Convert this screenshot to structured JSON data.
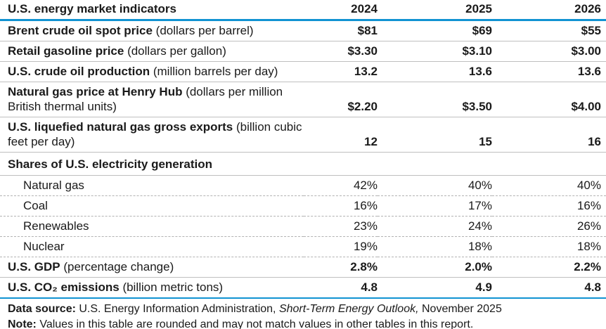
{
  "colors": {
    "accent_blue": "#1193d2",
    "separator_gray": "#bfbfbf",
    "text": "#1a1a1a"
  },
  "table": {
    "title": "U.S. energy market indicators",
    "years": [
      "2024",
      "2025",
      "2026"
    ],
    "rows": [
      {
        "bold": "Brent crude oil spot price",
        "rest": " (dollars per barrel)",
        "values": [
          "$81",
          "$69",
          "$55"
        ]
      },
      {
        "bold": "Retail gasoline price",
        "rest": " (dollars per gallon)",
        "values": [
          "$3.30",
          "$3.10",
          "$3.00"
        ]
      },
      {
        "bold": "U.S. crude oil production",
        "rest": " (million barrels per day)",
        "values": [
          "13.2",
          "13.6",
          "13.6"
        ]
      },
      {
        "bold": "Natural gas price at Henry Hub",
        "rest": " (dollars per million British thermal units)",
        "values": [
          "$2.20",
          "$3.50",
          "$4.00"
        ]
      },
      {
        "bold": "U.S. liquefied natural gas gross exports",
        "rest": " (billion cubic feet per day)",
        "values": [
          "12",
          "15",
          "16"
        ]
      },
      {
        "bold": "Shares of U.S. electricity generation"
      },
      {
        "label": "Natural gas",
        "values": [
          "42%",
          "40%",
          "40%"
        ]
      },
      {
        "label": "Coal",
        "values": [
          "16%",
          "17%",
          "16%"
        ]
      },
      {
        "label": "Renewables",
        "values": [
          "23%",
          "24%",
          "26%"
        ]
      },
      {
        "label": "Nuclear",
        "values": [
          "19%",
          "18%",
          "18%"
        ]
      },
      {
        "bold": "U.S. GDP",
        "rest": " (percentage change)",
        "values": [
          "2.8%",
          "2.0%",
          "2.2%"
        ]
      },
      {
        "bold": "U.S. CO₂ emissions",
        "rest": " (billion metric tons)",
        "values": [
          "4.8",
          "4.9",
          "4.8"
        ]
      }
    ]
  },
  "footer": {
    "source_label": "Data source:",
    "source_text": " U.S. Energy Information Administration, ",
    "source_italic": "Short-Term Energy Outlook,",
    "source_suffix": " November 2025",
    "note_label": "Note:",
    "note_text": " Values in this table are rounded and may not match values in other tables in this report."
  }
}
